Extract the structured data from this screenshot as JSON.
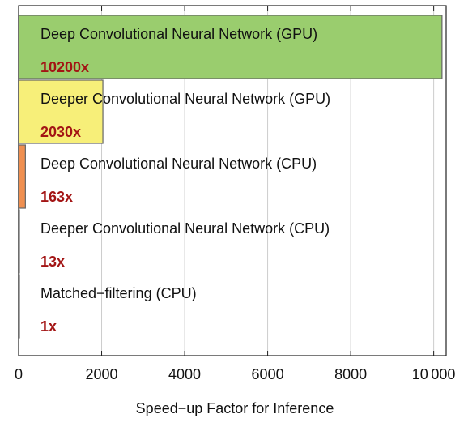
{
  "chart_data": {
    "type": "bar",
    "orientation": "horizontal",
    "xlabel": "Speed−up Factor for Inference",
    "ylabel": "",
    "xlim": [
      0,
      10300
    ],
    "xticks": [
      0,
      2000,
      4000,
      6000,
      8000,
      10000
    ],
    "xtick_labels": [
      "0",
      "2000",
      "4000",
      "6000",
      "8000",
      "10 000"
    ],
    "grid": "vertical",
    "bars": [
      {
        "name": "Deep Convolutional Neural Network (GPU)",
        "value": 10200,
        "value_label": "10200x",
        "color": "#9acd6e"
      },
      {
        "name": "Deeper Convolutional Neural Network (GPU)",
        "value": 2030,
        "value_label": "2030x",
        "color": "#f7ef79"
      },
      {
        "name": "Deep Convolutional Neural Network (CPU)",
        "value": 163,
        "value_label": "163x",
        "color": "#ef8f50"
      },
      {
        "name": "Deeper Convolutional Neural Network (CPU)",
        "value": 13,
        "value_label": "13x",
        "color": "#d9c1a8"
      },
      {
        "name": "Matched−filtering (CPU)",
        "value": 1,
        "value_label": "1x",
        "color": "#c8c8c8"
      }
    ],
    "value_label_color": "#a31515"
  }
}
